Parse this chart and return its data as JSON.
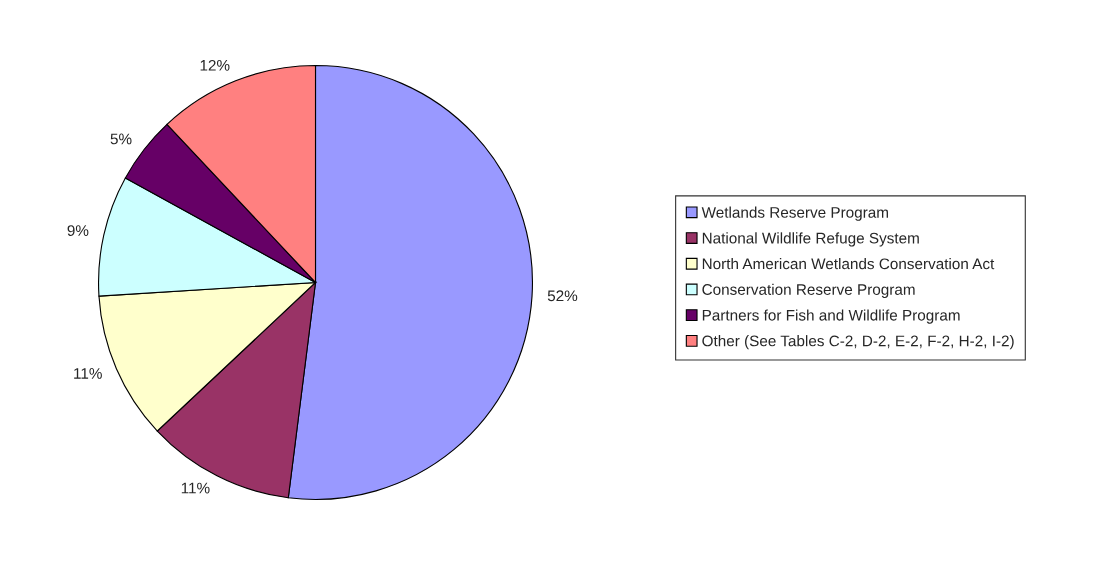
{
  "chart_data": {
    "type": "pie",
    "categories": [
      "Wetlands Reserve Program",
      "National Wildlife Refuge System",
      "North American Wetlands Conservation Act",
      "Conservation Reserve Program",
      "Partners for Fish and Wildlife Program",
      "Other (See Tables C-2, D-2, E-2, F-2, H-2, I-2)"
    ],
    "values": [
      52,
      11,
      11,
      9,
      5,
      12
    ],
    "value_labels": [
      "52%",
      "11%",
      "11%",
      "9%",
      "5%",
      "12%"
    ],
    "colors": [
      "#9999ff",
      "#993366",
      "#ffffcc",
      "#ccffff",
      "#660066",
      "#ff8080"
    ],
    "legend": "right"
  }
}
